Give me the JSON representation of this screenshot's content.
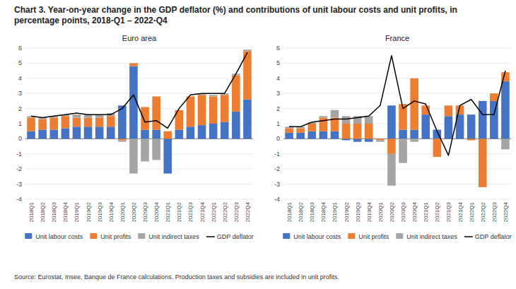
{
  "title": "Chart 3. Year-on-year change in the GDP deflator (%) and contributions of unit labour costs and unit profits, in percentage points, 2018-Q1 – 2022-Q4",
  "annotations": [
    "Source: Eurostat, Insee, Banque de France calculations. Production taxes and subsidies are included in unit profits."
  ],
  "chart_data": [
    {
      "type": "bar",
      "stacked": true,
      "title": "Euro area",
      "categories": [
        "2018Q1",
        "2018Q2",
        "2018Q3",
        "2018Q4",
        "2019Q1",
        "2019Q2",
        "2019Q3",
        "2019Q4",
        "2020Q1",
        "2020Q2",
        "2020Q3",
        "2020Q4",
        "2021Q1",
        "2021Q2",
        "2021Q3",
        "2021Q4",
        "2022Q1",
        "2022Q2",
        "2022Q3",
        "2022Q4"
      ],
      "series": [
        {
          "name": "Unit labour costs",
          "color": "#4472C4",
          "values": [
            0.5,
            0.6,
            0.6,
            0.7,
            0.8,
            0.8,
            0.8,
            0.8,
            2.2,
            4.8,
            0.6,
            0.6,
            -2.3,
            0.6,
            0.8,
            0.9,
            1.0,
            1.1,
            1.8,
            2.6
          ]
        },
        {
          "name": "Unit profits",
          "color": "#ED7D31",
          "values": [
            0.9,
            0.7,
            0.8,
            0.8,
            0.6,
            0.6,
            0.6,
            0.7,
            -0.1,
            0.2,
            1.5,
            2.2,
            0.5,
            1.3,
            2.0,
            2.0,
            1.8,
            1.8,
            2.4,
            3.2
          ]
        },
        {
          "name": "Unit indirect taxes",
          "color": "#A5A5A5",
          "values": [
            0.1,
            0.1,
            0.1,
            0.1,
            0.2,
            0.2,
            0.2,
            0.2,
            -0.1,
            -2.3,
            -1.5,
            -1.4,
            0.0,
            0.0,
            0.0,
            0.1,
            0.1,
            0.1,
            0.1,
            0.1
          ]
        },
        {
          "name": "GDP deflator",
          "type": "line",
          "color": "#000000",
          "values": [
            1.5,
            1.4,
            1.5,
            1.6,
            1.7,
            1.6,
            1.6,
            1.6,
            2.0,
            2.9,
            1.1,
            1.2,
            0.7,
            2.0,
            2.9,
            3.0,
            3.0,
            3.0,
            4.3,
            5.7
          ]
        }
      ],
      "ylim": [
        -4,
        6
      ],
      "yticks": [
        -4,
        -3,
        -2,
        -1,
        0,
        1,
        2,
        3,
        4,
        5,
        6
      ],
      "grid": true,
      "legend": "bottom"
    },
    {
      "type": "bar",
      "stacked": true,
      "title": "France",
      "categories": [
        "2018Q1",
        "2018Q2",
        "2018Q3",
        "2018Q4",
        "2019Q1",
        "2019Q2",
        "2019Q3",
        "2019Q4",
        "2020Q1",
        "2020Q2",
        "2020Q3",
        "2020Q4",
        "2021Q1",
        "2021Q2",
        "2021Q3",
        "2021Q4",
        "2022Q1",
        "2022Q2",
        "2022Q3",
        "2022Q4"
      ],
      "series": [
        {
          "name": "Unit labour costs",
          "color": "#4472C4",
          "values": [
            0.4,
            0.4,
            0.5,
            0.5,
            0.5,
            -0.1,
            -0.2,
            -0.2,
            0.0,
            2.2,
            0.6,
            0.6,
            1.6,
            0.6,
            1.5,
            1.6,
            1.6,
            2.5,
            2.5,
            3.8
          ]
        },
        {
          "name": "Unit profits",
          "color": "#ED7D31",
          "values": [
            0.3,
            0.3,
            0.5,
            0.9,
            0.9,
            1.0,
            1.0,
            1.0,
            -0.1,
            -1.0,
            1.7,
            3.4,
            0.6,
            -1.2,
            0.7,
            0.6,
            -0.1,
            -3.2,
            0.5,
            0.6
          ]
        },
        {
          "name": "Unit indirect taxes",
          "color": "#A5A5A5",
          "values": [
            0.1,
            0.1,
            0.1,
            0.1,
            0.5,
            0.5,
            0.5,
            0.5,
            -0.1,
            -2.1,
            -1.6,
            -0.2,
            0.0,
            0.0,
            0.0,
            0.0,
            0.0,
            0.0,
            0.0,
            -0.7
          ]
        },
        {
          "name": "GDP deflator",
          "type": "line",
          "color": "#000000",
          "values": [
            0.8,
            0.8,
            1.1,
            1.2,
            1.3,
            1.3,
            1.4,
            1.5,
            2.2,
            5.5,
            2.0,
            2.5,
            2.3,
            0.5,
            -1.1,
            2.2,
            2.6,
            1.6,
            1.6,
            4.5
          ]
        }
      ],
      "ylim": [
        -4,
        6
      ],
      "yticks": [
        -4,
        -3,
        -2,
        -1,
        0,
        1,
        2,
        3,
        4,
        5,
        6
      ],
      "grid": true,
      "legend": "bottom"
    }
  ]
}
